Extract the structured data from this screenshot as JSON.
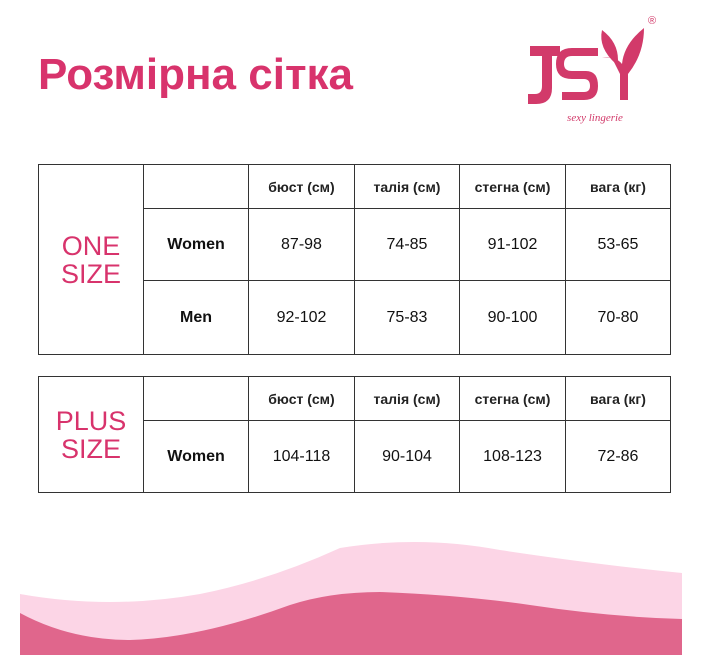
{
  "title": "Розмірна сітка",
  "logo": {
    "text": "JSY",
    "tagline": "sexy lingerie",
    "registered": "®"
  },
  "headers": [
    "бюст (см)",
    "талія (см)",
    "стегна (см)",
    "вага (кг)"
  ],
  "one_size": {
    "label_line1": "ONE",
    "label_line2": "SIZE",
    "rows": [
      {
        "name": "Women",
        "values": [
          "87-98",
          "74-85",
          "91-102",
          "53-65"
        ]
      },
      {
        "name": "Men",
        "values": [
          "92-102",
          "75-83",
          "90-100",
          "70-80"
        ]
      }
    ]
  },
  "plus_size": {
    "label_line1": "PLUS",
    "label_line2": "SIZE",
    "rows": [
      {
        "name": "Women",
        "values": [
          "104-118",
          "90-104",
          "108-123",
          "72-86"
        ]
      }
    ]
  },
  "colors": {
    "accent": "#d8336c",
    "wave_light": "#fcd5e6",
    "wave_dark": "#e0668c"
  }
}
